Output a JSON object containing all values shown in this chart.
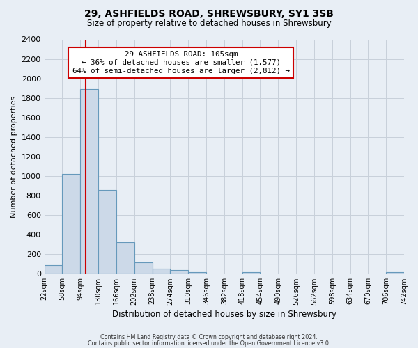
{
  "title1": "29, ASHFIELDS ROAD, SHREWSBURY, SY1 3SB",
  "title2": "Size of property relative to detached houses in Shrewsbury",
  "xlabel": "Distribution of detached houses by size in Shrewsbury",
  "ylabel": "Number of detached properties",
  "bin_edges": [
    22,
    58,
    94,
    130,
    166,
    202,
    238,
    274,
    310,
    346,
    382,
    418,
    454,
    490,
    526,
    562,
    598,
    634,
    670,
    706,
    742
  ],
  "bin_labels": [
    "22sqm",
    "58sqm",
    "94sqm",
    "130sqm",
    "166sqm",
    "202sqm",
    "238sqm",
    "274sqm",
    "310sqm",
    "346sqm",
    "382sqm",
    "418sqm",
    "454sqm",
    "490sqm",
    "526sqm",
    "562sqm",
    "598sqm",
    "634sqm",
    "670sqm",
    "706sqm",
    "742sqm"
  ],
  "counts": [
    90,
    1020,
    1890,
    860,
    320,
    115,
    50,
    35,
    20,
    0,
    0,
    15,
    0,
    0,
    0,
    0,
    0,
    0,
    0,
    15
  ],
  "bar_color": "#ccd9e8",
  "bar_edge_color": "#6699bb",
  "property_line_x": 105,
  "property_line_color": "#cc0000",
  "annotation_title": "29 ASHFIELDS ROAD: 105sqm",
  "annotation_line1": "← 36% of detached houses are smaller (1,577)",
  "annotation_line2": "64% of semi-detached houses are larger (2,812) →",
  "annotation_box_facecolor": "#ffffff",
  "annotation_box_edgecolor": "#cc0000",
  "ylim": [
    0,
    2400
  ],
  "yticks": [
    0,
    200,
    400,
    600,
    800,
    1000,
    1200,
    1400,
    1600,
    1800,
    2000,
    2200,
    2400
  ],
  "footer1": "Contains HM Land Registry data © Crown copyright and database right 2024.",
  "footer2": "Contains public sector information licensed under the Open Government Licence v3.0.",
  "background_color": "#e8eef5",
  "grid_color": "#c8d0da",
  "plot_bg_color": "#e8eef5"
}
